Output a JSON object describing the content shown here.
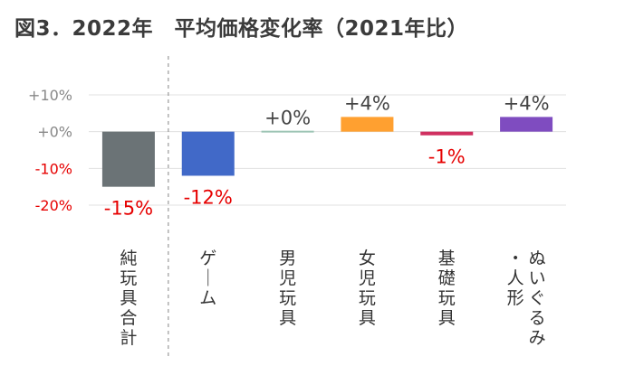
{
  "chart_data": {
    "type": "bar",
    "title": "図3．2022年　平均価格変化率（2021年比）",
    "xlabel": "",
    "ylabel": "",
    "ylim": [
      -20,
      10
    ],
    "y_ticks": [
      10,
      0,
      -10,
      -20
    ],
    "y_tick_labels": [
      "+10%",
      "+0%",
      "-10%",
      "-20%"
    ],
    "grid": true,
    "legend": "none",
    "categories": [
      "純玩具合計",
      "ゲーム",
      "男児玩具",
      "女児玩具",
      "基礎玩具",
      "ぬいぐるみ・人形"
    ],
    "values": [
      -15,
      -12,
      0,
      4,
      -1,
      4
    ],
    "data_labels": [
      "-15%",
      "-12%",
      "+0%",
      "+4%",
      "-1%",
      "+4%"
    ],
    "bar_colors": [
      "#6b7376",
      "#4169c8",
      "#9ec5b5",
      "#ffa030",
      "#d03060",
      "#7f4cc0"
    ],
    "positive_label_color": "#444444",
    "negative_label_color": "#e60000",
    "tick_label_color": "#888888",
    "grid_color": "#e0e0e0",
    "divider_after_category": 0
  }
}
